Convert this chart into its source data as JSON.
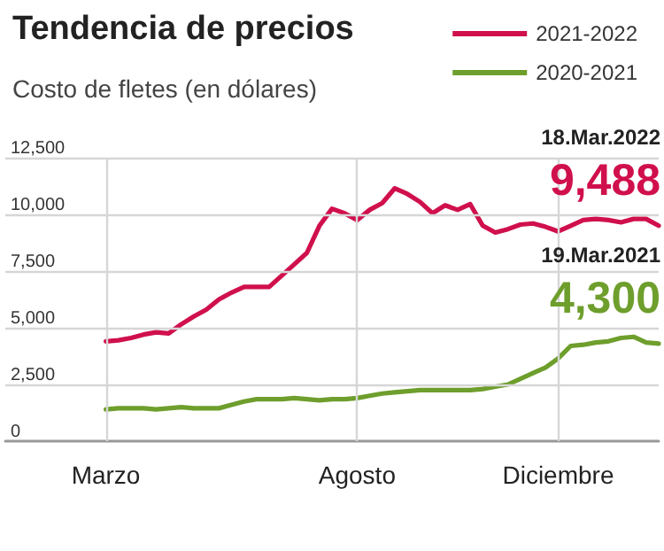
{
  "chart_data": {
    "type": "line",
    "title": "Tendencia de precios",
    "subtitle": "Costo de fletes (en dólares)",
    "categories": [
      null,
      null,
      null,
      null,
      null,
      null,
      null,
      null,
      "Marzo",
      null,
      null,
      null,
      null,
      null,
      null,
      null,
      null,
      null,
      null,
      null,
      null,
      null,
      null,
      null,
      null,
      null,
      null,
      null,
      "Agosto",
      null,
      null,
      null,
      null,
      null,
      null,
      null,
      null,
      null,
      null,
      null,
      null,
      null,
      null,
      null,
      "Diciembre",
      null,
      null,
      null,
      null,
      null,
      null,
      null,
      null
    ],
    "ylim": [
      0,
      12500
    ],
    "yticks": [
      0,
      {
        "value": 2500,
        "label": "2,500"
      },
      {
        "value": 5000,
        "label": "5,000"
      },
      {
        "value": 7500,
        "label": "7,500"
      },
      {
        "value": 10000,
        "label": "10,000"
      },
      {
        "value": 12500,
        "label": "12,500"
      }
    ],
    "grid": true,
    "legend": "top right",
    "marker": "none",
    "line_style": "solid",
    "series": [
      {
        "name": "2021-2022",
        "color": "#d0104c",
        "values": [
          null,
          null,
          null,
          null,
          null,
          null,
          null,
          null,
          4400,
          4450,
          4550,
          4700,
          4800,
          4750,
          5150,
          5500,
          5800,
          6250,
          6550,
          6800,
          6800,
          6800,
          7300,
          7800,
          8300,
          9500,
          10250,
          10050,
          9750,
          10200,
          10500,
          11150,
          10900,
          10550,
          10050,
          10400,
          10200,
          10450,
          9500,
          9200,
          9350,
          9550,
          9600,
          9450,
          9250,
          9500,
          9750,
          9800,
          9750,
          9650,
          9800,
          9800,
          9500
        ]
      },
      {
        "name": "2020-2021",
        "color": "#6e9e2c",
        "values": [
          null,
          null,
          null,
          null,
          null,
          null,
          null,
          null,
          1400,
          1450,
          1450,
          1450,
          1400,
          1450,
          1500,
          1450,
          1450,
          1450,
          1600,
          1750,
          1850,
          1850,
          1850,
          1900,
          1850,
          1800,
          1850,
          1850,
          1900,
          2000,
          2100,
          2150,
          2200,
          2250,
          2250,
          2250,
          2250,
          2250,
          2300,
          2400,
          2500,
          2750,
          3000,
          3250,
          3650,
          4200,
          4250,
          4350,
          4400,
          4550,
          4600,
          4350,
          4300
        ]
      }
    ],
    "annotations": [
      "18.Mar.2022",
      "9,488",
      "19.Mar.2021",
      "4,300"
    ]
  }
}
